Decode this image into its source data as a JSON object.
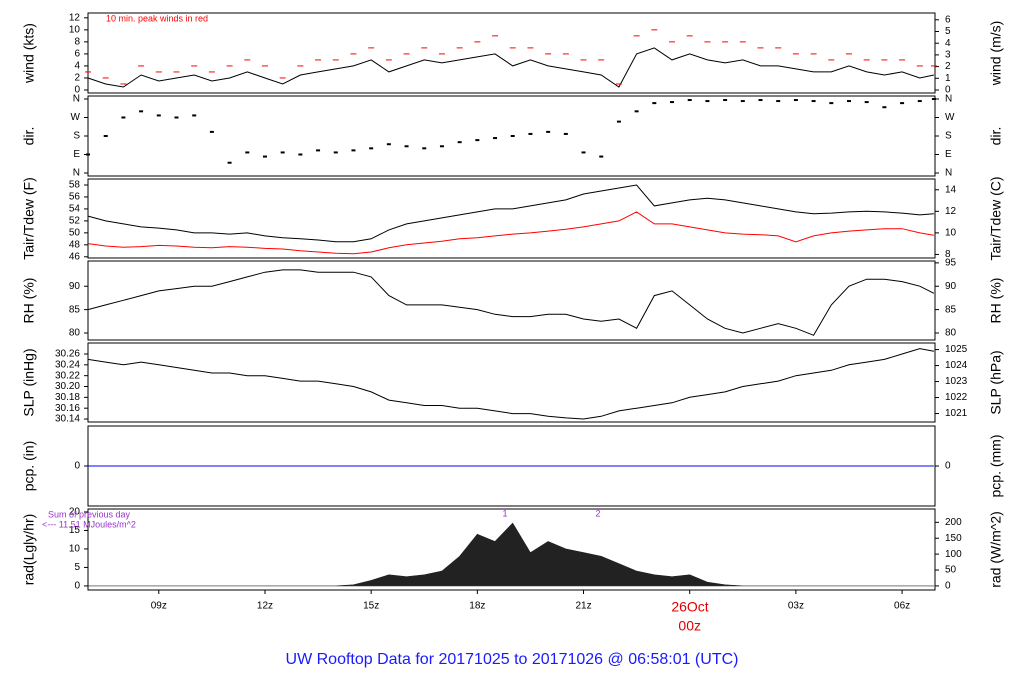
{
  "title": "UW Rooftop Data for 20171025  to  20171026 @ 06:58:01  (UTC)",
  "chart_data": [
    {
      "type": "line",
      "ylabel": "wind (kts)",
      "y2label": "wind (m/s)",
      "annotations": [
        "10 min. peak winds in red"
      ],
      "x": [
        7,
        7.5,
        8,
        8.5,
        9,
        9.5,
        10,
        10.5,
        11,
        11.5,
        12,
        12.5,
        13,
        13.5,
        14,
        14.5,
        15,
        15.5,
        16,
        16.5,
        17,
        17.5,
        18,
        18.5,
        19,
        19.5,
        20,
        20.5,
        21,
        21.5,
        22,
        22.5,
        23,
        23.5,
        24,
        24.5,
        25,
        25.5,
        26,
        26.5,
        27,
        27.5,
        28,
        28.5,
        29,
        29.5,
        30,
        30.5,
        30.9
      ],
      "series": [
        {
          "name": "wind",
          "color": "#000000",
          "values": [
            2,
            1,
            0.5,
            2.5,
            1.5,
            2,
            2.5,
            1.5,
            2,
            3,
            2,
            1,
            2.5,
            3,
            3.5,
            4,
            5,
            3,
            4,
            5,
            4.5,
            5,
            5.5,
            6,
            4,
            5,
            4,
            3.5,
            3,
            2.5,
            0.5,
            6,
            7,
            5,
            6,
            5,
            4.5,
            5,
            4,
            4,
            3.5,
            3,
            3,
            4,
            3,
            2.5,
            3,
            2,
            2.5
          ]
        },
        {
          "name": "peak",
          "type": "scatter",
          "marker": "dash",
          "color": "#ff0000",
          "values": [
            3,
            2,
            1,
            4,
            3,
            3,
            4,
            3,
            4,
            5,
            4,
            2,
            4,
            5,
            5,
            6,
            7,
            5,
            6,
            7,
            6,
            7,
            8,
            9,
            7,
            7,
            6,
            6,
            5,
            5,
            1,
            9,
            10,
            8,
            9,
            8,
            8,
            8,
            7,
            7,
            6,
            6,
            5,
            6,
            5,
            5,
            5,
            4,
            4
          ]
        }
      ],
      "xlim": [
        7.0,
        30.93
      ],
      "ylim": [
        -0.5,
        12.8
      ],
      "yticks": [
        0,
        2,
        4,
        6,
        8,
        10,
        12
      ],
      "y2lim": [
        -0.257,
        6.58
      ],
      "y2ticks": [
        0,
        1,
        2,
        3,
        4,
        5,
        6
      ]
    },
    {
      "type": "scatter",
      "ylabel": "dir.",
      "y2label": "dir.",
      "x": [
        7,
        7.5,
        8,
        8.5,
        9,
        9.5,
        10,
        10.5,
        11,
        11.5,
        12,
        12.5,
        13,
        13.5,
        14,
        14.5,
        15,
        15.5,
        16,
        16.5,
        17,
        17.5,
        18,
        18.5,
        19,
        19.5,
        20,
        20.5,
        21,
        21.5,
        22,
        22.5,
        23,
        23.5,
        24,
        24.5,
        25,
        25.5,
        26,
        26.5,
        27,
        27.5,
        28,
        28.5,
        29,
        29.5,
        30,
        30.5,
        30.9
      ],
      "series": [
        {
          "name": "dir",
          "marker": "dot",
          "color": "#000000",
          "values": [
            90,
            180,
            270,
            300,
            280,
            270,
            280,
            200,
            50,
            100,
            80,
            100,
            90,
            110,
            100,
            110,
            120,
            140,
            130,
            120,
            130,
            150,
            160,
            170,
            180,
            190,
            200,
            190,
            100,
            80,
            250,
            300,
            340,
            345,
            355,
            350,
            355,
            350,
            355,
            350,
            355,
            350,
            340,
            350,
            345,
            320,
            340,
            350,
            360
          ]
        }
      ],
      "xlim": [
        7.0,
        30.93
      ],
      "ylim": [
        -14.6,
        374.6
      ],
      "yticks": [
        {
          "value": 0,
          "label": "N"
        },
        {
          "value": 90,
          "label": "E"
        },
        {
          "value": 180,
          "label": "S"
        },
        {
          "value": 270,
          "label": "W"
        },
        {
          "value": 360,
          "label": "N"
        }
      ],
      "y2lim": [
        -14.6,
        374.6
      ],
      "y2ticks": [
        {
          "value": 0,
          "label": "N"
        },
        {
          "value": 90,
          "label": "E"
        },
        {
          "value": 180,
          "label": "S"
        },
        {
          "value": 270,
          "label": "W"
        },
        {
          "value": 360,
          "label": "N"
        }
      ]
    },
    {
      "type": "line",
      "ylabel": "Tair/Tdew (F)",
      "y2label": "Tair/Tdew (C)",
      "x": [
        7,
        7.5,
        8,
        8.5,
        9,
        9.5,
        10,
        10.5,
        11,
        11.5,
        12,
        12.5,
        13,
        13.5,
        14,
        14.5,
        15,
        15.5,
        16,
        16.5,
        17,
        17.5,
        18,
        18.5,
        19,
        19.5,
        20,
        20.5,
        21,
        21.5,
        22,
        22.5,
        23,
        23.5,
        24,
        24.5,
        25,
        25.5,
        26,
        26.5,
        27,
        27.5,
        28,
        28.5,
        29,
        29.5,
        30,
        30.5,
        30.9
      ],
      "series": [
        {
          "name": "Tair",
          "color": "#000000",
          "values": [
            52.8,
            52,
            51.5,
            51,
            50.8,
            50.5,
            50,
            50,
            49.8,
            50,
            49.5,
            49.2,
            49,
            48.8,
            48.5,
            48.5,
            49,
            50.5,
            51.5,
            52,
            52.5,
            53,
            53.5,
            54,
            54,
            54.5,
            55,
            55.5,
            56.5,
            57,
            57.5,
            58,
            54.5,
            55,
            55.5,
            55.8,
            55.5,
            55,
            54.5,
            54,
            53.5,
            53.2,
            53.3,
            53.5,
            53.6,
            53.5,
            53.3,
            53,
            53.2
          ]
        },
        {
          "name": "Tdew",
          "color": "#ff0000",
          "values": [
            48.2,
            47.8,
            47.6,
            47.7,
            47.9,
            47.8,
            47.6,
            47.5,
            47.7,
            47.6,
            47.4,
            47.3,
            47.0,
            46.8,
            46.6,
            46.5,
            46.8,
            47.5,
            48.0,
            48.3,
            48.6,
            49.0,
            49.2,
            49.5,
            49.8,
            50.0,
            50.3,
            50.6,
            51.0,
            51.5,
            52.0,
            53.5,
            51.5,
            51.5,
            51.0,
            50.5,
            50.0,
            49.8,
            49.7,
            49.5,
            48.5,
            49.5,
            50.0,
            50.3,
            50.5,
            50.7,
            50.7,
            50.0,
            49.6
          ]
        }
      ],
      "xlim": [
        7.0,
        30.93
      ],
      "ylim": [
        45.8,
        59
      ],
      "yticks": [
        46,
        48,
        50,
        52,
        54,
        56,
        58
      ],
      "y2lim": [
        7.67,
        15
      ],
      "y2ticks": [
        8,
        10,
        12,
        14
      ]
    },
    {
      "type": "line",
      "ylabel": "RH (%)",
      "y2label": "RH (%)",
      "x": [
        7,
        7.5,
        8,
        8.5,
        9,
        9.5,
        10,
        10.5,
        11,
        11.5,
        12,
        12.5,
        13,
        13.5,
        14,
        14.5,
        15,
        15.5,
        16,
        16.5,
        17,
        17.5,
        18,
        18.5,
        19,
        19.5,
        20,
        20.5,
        21,
        21.5,
        22,
        22.5,
        23,
        23.5,
        24,
        24.5,
        25,
        25.5,
        26,
        26.5,
        27,
        27.5,
        28,
        28.5,
        29,
        29.5,
        30,
        30.5,
        30.9
      ],
      "series": [
        {
          "name": "RH",
          "color": "#000000",
          "values": [
            85,
            86,
            87,
            88,
            89,
            89.5,
            90,
            90,
            91,
            92,
            93,
            93.5,
            93.5,
            93,
            93,
            93,
            92,
            88,
            86,
            86,
            86,
            85.5,
            85,
            84,
            83.5,
            83.5,
            84,
            84,
            83,
            82.5,
            83,
            81,
            88,
            89,
            86,
            83,
            81,
            80,
            81,
            82,
            81,
            79.5,
            86,
            90,
            91.5,
            91.5,
            91,
            90,
            88.5
          ]
        }
      ],
      "xlim": [
        7.0,
        30.93
      ],
      "ylim": [
        78.5,
        95.4
      ],
      "yticks": [
        80,
        85,
        90
      ],
      "y2lim": [
        78.5,
        95.4
      ],
      "y2ticks": [
        80,
        85,
        90,
        95
      ]
    },
    {
      "type": "line",
      "ylabel": "SLP (inHg)",
      "y2label": "SLP (hPa)",
      "x": [
        7,
        7.5,
        8,
        8.5,
        9,
        9.5,
        10,
        10.5,
        11,
        11.5,
        12,
        12.5,
        13,
        13.5,
        14,
        14.5,
        15,
        15.5,
        16,
        16.5,
        17,
        17.5,
        18,
        18.5,
        19,
        19.5,
        20,
        20.5,
        21,
        21.5,
        22,
        22.5,
        23,
        23.5,
        24,
        24.5,
        25,
        25.5,
        26,
        26.5,
        27,
        27.5,
        28,
        28.5,
        29,
        29.5,
        30,
        30.5,
        30.9
      ],
      "series": [
        {
          "name": "SLP",
          "color": "#000000",
          "values": [
            30.25,
            30.245,
            30.24,
            30.245,
            30.24,
            30.235,
            30.23,
            30.225,
            30.225,
            30.22,
            30.22,
            30.215,
            30.21,
            30.21,
            30.205,
            30.2,
            30.19,
            30.175,
            30.17,
            30.165,
            30.165,
            30.16,
            30.16,
            30.155,
            30.15,
            30.15,
            30.145,
            30.142,
            30.14,
            30.145,
            30.155,
            30.16,
            30.165,
            30.17,
            30.18,
            30.185,
            30.19,
            30.2,
            30.205,
            30.21,
            30.22,
            30.225,
            30.23,
            30.24,
            30.245,
            30.25,
            30.26,
            30.27,
            30.265
          ]
        }
      ],
      "xlim": [
        7.0,
        30.93
      ],
      "ylim": [
        30.1345,
        30.2803
      ],
      "yticks": [
        30.14,
        30.16,
        30.18,
        {
          "value": 30.2,
          "label": "30.20"
        },
        30.22,
        30.24,
        30.26
      ],
      "y2lim": [
        1020.47,
        1025.41
      ],
      "y2ticks": [
        1021,
        1022,
        1023,
        1024,
        1025
      ]
    },
    {
      "type": "line",
      "ylabel": "pcp. (in)",
      "y2label": "pcp. (mm)",
      "x": [
        7,
        7.5,
        8,
        8.5,
        9,
        9.5,
        10,
        10.5,
        11,
        11.5,
        12,
        12.5,
        13,
        13.5,
        14,
        14.5,
        15,
        15.5,
        16,
        16.5,
        17,
        17.5,
        18,
        18.5,
        19,
        19.5,
        20,
        20.5,
        21,
        21.5,
        22,
        22.5,
        23,
        23.5,
        24,
        24.5,
        25,
        25.5,
        26,
        26.5,
        27,
        27.5,
        28,
        28.5,
        29,
        29.5,
        30,
        30.5,
        30.9
      ],
      "series": [
        {
          "name": "pcp",
          "color": "#0000ff",
          "values": [
            0,
            0,
            0,
            0,
            0,
            0,
            0,
            0,
            0,
            0,
            0,
            0,
            0,
            0,
            0,
            0,
            0,
            0,
            0,
            0,
            0,
            0,
            0,
            0,
            0,
            0,
            0,
            0,
            0,
            0,
            0,
            0,
            0,
            0,
            0,
            0,
            0,
            0,
            0,
            0,
            0,
            0,
            0,
            0,
            0,
            0,
            0,
            0,
            0
          ]
        }
      ],
      "xlim": [
        7.0,
        30.93
      ],
      "ylim": [
        -1,
        1
      ],
      "yticks": [
        0
      ],
      "y2lim": [
        -25.4,
        25.4
      ],
      "y2ticks": [
        0
      ]
    },
    {
      "type": "area",
      "ylabel": "rad(Lgly/hr)",
      "y2label": "rad (W/m^2)",
      "annotations": [
        "Sum of previous day",
        "<--- 11.51 MJoules/m^2",
        "1",
        "2",
        "26Oct"
      ],
      "x": [
        7,
        7.5,
        8,
        8.5,
        9,
        9.5,
        10,
        10.5,
        11,
        11.5,
        12,
        12.5,
        13,
        13.5,
        14,
        14.5,
        15,
        15.5,
        16,
        16.5,
        17,
        17.5,
        18,
        18.5,
        19,
        19.5,
        20,
        20.5,
        21,
        21.5,
        22,
        22.5,
        23,
        23.5,
        24,
        24.5,
        25,
        25.5,
        26,
        26.5,
        27,
        27.5,
        28,
        28.5,
        29,
        29.5,
        30,
        30.5,
        30.9
      ],
      "series": [
        {
          "name": "rad",
          "color": "#222222",
          "values": [
            0,
            0,
            0,
            0,
            0,
            0,
            0,
            0,
            0,
            0,
            0,
            0,
            0,
            0,
            0,
            0.3,
            1.5,
            3,
            2.5,
            3,
            4,
            8,
            14,
            12,
            17,
            9,
            12,
            10,
            9,
            8,
            6,
            4,
            3,
            2.5,
            3,
            1,
            0.3,
            0,
            0,
            0,
            0,
            0,
            0,
            0,
            0,
            0,
            0,
            0,
            0
          ]
        }
      ],
      "xlim": [
        7.0,
        30.93
      ],
      "ylim": [
        -1.1,
        20.8
      ],
      "yticks": [
        0,
        5,
        10,
        15,
        20
      ],
      "y2lim": [
        -12.8,
        241.9
      ],
      "y2ticks": [
        0,
        50,
        100,
        150,
        200
      ],
      "xticks": [
        {
          "value": 9,
          "label": "09z"
        },
        {
          "value": 12,
          "label": "12z"
        },
        {
          "value": 15,
          "label": "15z"
        },
        {
          "value": 18,
          "label": "18z"
        },
        {
          "value": 21,
          "label": "21z"
        },
        {
          "value": 24,
          "label": "00z",
          "color": "#dd0000"
        },
        {
          "value": 27,
          "label": "03z"
        },
        {
          "value": 30,
          "label": "06z"
        }
      ]
    }
  ]
}
